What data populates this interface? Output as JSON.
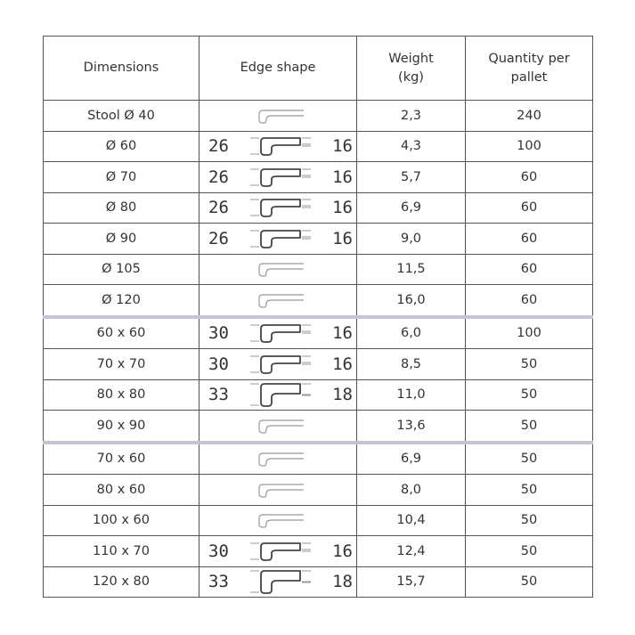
{
  "headers": [
    "Dimensions",
    "Edge shape",
    "Weight\n(kg)",
    "Quantity per\npallet"
  ],
  "rows": [
    {
      "dim": "Stool Ø 40",
      "left": null,
      "right": null,
      "weight": "2,3",
      "qty": "240"
    },
    {
      "dim": "Ø 60",
      "left": "26",
      "right": "16",
      "weight": "4,3",
      "qty": "100"
    },
    {
      "dim": "Ø 70",
      "left": "26",
      "right": "16",
      "weight": "5,7",
      "qty": "60"
    },
    {
      "dim": "Ø 80",
      "left": "26",
      "right": "16",
      "weight": "6,9",
      "qty": "60"
    },
    {
      "dim": "Ø 90",
      "left": "26",
      "right": "16",
      "weight": "9,0",
      "qty": "60"
    },
    {
      "dim": "Ø 105",
      "left": null,
      "right": null,
      "weight": "11,5",
      "qty": "60"
    },
    {
      "dim": "Ø 120",
      "left": null,
      "right": null,
      "weight": "16,0",
      "qty": "60"
    },
    {
      "dim": "60 x 60",
      "left": "30",
      "right": "16",
      "weight": "6,0",
      "qty": "100",
      "sep": true
    },
    {
      "dim": "70 x 70",
      "left": "30",
      "right": "16",
      "weight": "8,5",
      "qty": "50"
    },
    {
      "dim": "80 x 80",
      "left": "33",
      "right": "18",
      "weight": "11,0",
      "qty": "50"
    },
    {
      "dim": "90 x 90",
      "left": null,
      "right": null,
      "weight": "13,6",
      "qty": "50"
    },
    {
      "dim": "70 x 60",
      "left": null,
      "right": null,
      "weight": "6,9",
      "qty": "50",
      "sep": true
    },
    {
      "dim": "80 x 60",
      "left": null,
      "right": null,
      "weight": "8,0",
      "qty": "50"
    },
    {
      "dim": "100 x 60",
      "left": null,
      "right": null,
      "weight": "10,4",
      "qty": "50"
    },
    {
      "dim": "110 x 70",
      "left": "30",
      "right": "16",
      "weight": "12,4",
      "qty": "50"
    },
    {
      "dim": "120 x 80",
      "left": "33",
      "right": "18",
      "weight": "15,7",
      "qty": "50"
    }
  ]
}
